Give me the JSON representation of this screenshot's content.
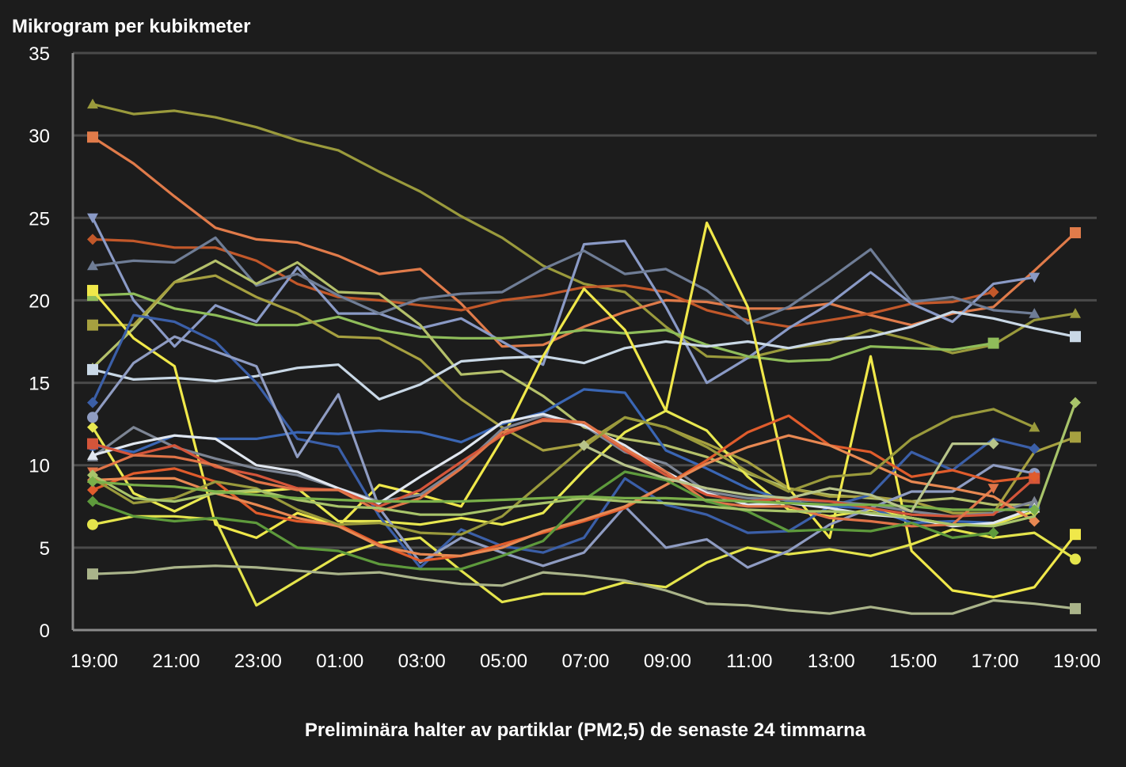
{
  "chart_data": {
    "type": "line",
    "ylabel": "Mikrogram per kubikmeter",
    "caption": "Preliminära halter av partiklar (PM2,5) de senaste 24 timmarna",
    "ylim": [
      0,
      35
    ],
    "yticks": [
      "0",
      "5",
      "10",
      "15",
      "20",
      "25",
      "30",
      "35"
    ],
    "xtick_labels": [
      "19:00",
      "21:00",
      "23:00",
      "01:00",
      "03:00",
      "05:00",
      "07:00",
      "09:00",
      "11:00",
      "13:00",
      "15:00",
      "17:00",
      "19:00"
    ],
    "grid": true,
    "legend": "none",
    "series": [
      {
        "color": "#9a9a3c",
        "marker": "triangle",
        "values": [
          31.9,
          31.3,
          31.5,
          31.1,
          30.5,
          29.7,
          29.1,
          27.8,
          26.6,
          25.1,
          23.8,
          22.1,
          21.0,
          20.5,
          18.4,
          16.6,
          16.5,
          17.1,
          17.4,
          18.2,
          17.6,
          16.8,
          17.3,
          18.8,
          19.2
        ]
      },
      {
        "color": "#e07b4a",
        "marker": "square",
        "values": [
          29.9,
          28.3,
          26.3,
          24.4,
          23.7,
          23.5,
          22.7,
          21.6,
          21.9,
          19.8,
          17.2,
          17.3,
          18.4,
          19.3,
          20.0,
          19.9,
          19.5,
          19.5,
          19.8,
          19.1,
          18.5,
          19.2,
          19.6,
          21.8,
          24.1
        ]
      },
      {
        "color": "#c2582a",
        "marker": "diamond",
        "values": [
          23.7,
          23.6,
          23.2,
          23.2,
          22.4,
          21.0,
          20.2,
          20.0,
          19.7,
          19.4,
          20.0,
          20.3,
          20.8,
          20.9,
          20.5,
          19.4,
          18.8,
          18.4,
          18.8,
          19.2,
          19.8,
          19.9,
          20.5,
          null,
          null
        ]
      },
      {
        "color": "#8a9ac6",
        "marker": "triangle-down",
        "values": [
          25.0,
          20.0,
          17.2,
          19.7,
          18.7,
          22.0,
          19.2,
          19.2,
          18.3,
          18.9,
          17.5,
          16.1,
          23.4,
          23.6,
          19.6,
          15.0,
          16.5,
          18.3,
          19.8,
          21.7,
          19.8,
          18.7,
          21.0,
          21.4,
          null
        ]
      },
      {
        "color": "#6f7d96",
        "marker": "triangle",
        "values": [
          22.1,
          22.4,
          22.3,
          23.8,
          20.9,
          21.6,
          20.3,
          19.2,
          20.1,
          20.4,
          20.5,
          21.9,
          23.0,
          21.6,
          21.9,
          20.6,
          18.6,
          19.6,
          21.3,
          23.1,
          19.9,
          20.2,
          19.4,
          19.2,
          null
        ]
      },
      {
        "color": "#8fbd5a",
        "marker": "square",
        "values": [
          20.3,
          20.4,
          19.5,
          19.1,
          18.5,
          18.5,
          19.0,
          18.2,
          17.8,
          17.7,
          17.7,
          17.9,
          18.2,
          18.0,
          18.2,
          17.3,
          16.6,
          16.3,
          16.4,
          17.2,
          17.1,
          17.0,
          17.4,
          null,
          null
        ]
      },
      {
        "color": "#b4c06a",
        "marker": "triangle",
        "values": [
          15.9,
          18.3,
          21.1,
          22.4,
          21.0,
          22.3,
          20.5,
          20.4,
          18.5,
          15.5,
          15.7,
          14.2,
          12.3,
          11.6,
          11.2,
          10.5,
          9.5,
          8.6,
          8.2,
          8.0,
          7.8,
          8.0,
          7.6,
          7.6,
          null
        ]
      },
      {
        "color": "#a6a040",
        "marker": "square",
        "values": [
          18.5,
          18.5,
          21.1,
          21.5,
          20.2,
          19.2,
          17.8,
          17.7,
          16.4,
          14.0,
          12.3,
          10.9,
          11.3,
          12.9,
          12.3,
          11.3,
          10.2,
          8.6,
          8.1,
          8.1,
          7.8,
          7.1,
          7.1,
          10.8,
          11.7
        ]
      },
      {
        "color": "#c9d8e6",
        "marker": "square",
        "values": [
          15.8,
          15.2,
          15.3,
          15.1,
          15.4,
          15.9,
          16.1,
          14.0,
          14.9,
          16.3,
          16.5,
          16.6,
          16.2,
          17.1,
          17.5,
          17.2,
          17.5,
          17.1,
          17.6,
          17.8,
          18.4,
          19.3,
          18.9,
          18.3,
          17.8
        ]
      },
      {
        "color": "#f0e84a",
        "marker": "square",
        "values": [
          20.6,
          17.7,
          16.0,
          6.4,
          5.6,
          7.1,
          6.3,
          8.8,
          8.2,
          7.5,
          11.6,
          16.6,
          20.7,
          18.2,
          13.3,
          24.7,
          19.6,
          8.6,
          5.6,
          16.6,
          4.8,
          2.4,
          2.0,
          2.6,
          5.8
        ]
      },
      {
        "color": "#e4e44c",
        "marker": "circle",
        "values": [
          6.4,
          6.9,
          6.9,
          6.7,
          1.5,
          3.0,
          4.5,
          5.3,
          5.6,
          3.6,
          1.7,
          2.2,
          2.2,
          2.9,
          2.6,
          4.1,
          5.0,
          4.6,
          4.9,
          4.5,
          5.2,
          6.1,
          5.6,
          5.9,
          4.3
        ]
      },
      {
        "color": "#e8e850",
        "marker": "diamond",
        "values": [
          12.3,
          8.3,
          7.2,
          8.4,
          8.4,
          8.6,
          6.6,
          6.6,
          6.4,
          6.8,
          6.4,
          7.1,
          9.7,
          12.0,
          13.3,
          12.1,
          9.3,
          7.3,
          6.9,
          7.3,
          6.8,
          6.4,
          6.4,
          7.2,
          null
        ]
      },
      {
        "color": "#3b5fa8",
        "marker": "diamond",
        "values": [
          13.8,
          19.1,
          18.7,
          17.5,
          15.0,
          11.6,
          11.1,
          6.9,
          3.8,
          6.1,
          5.1,
          4.7,
          5.6,
          9.2,
          7.6,
          7.0,
          5.9,
          6.0,
          7.5,
          8.2,
          10.8,
          9.7,
          11.6,
          11.0,
          null
        ]
      },
      {
        "color": "#3a66b4",
        "marker": "circle",
        "values": [
          11.2,
          10.8,
          11.8,
          11.6,
          11.6,
          12.0,
          11.9,
          12.1,
          12.0,
          11.4,
          12.5,
          13.2,
          14.6,
          14.4,
          10.9,
          9.8,
          8.6,
          7.8,
          7.5,
          7.4,
          6.5,
          6.6,
          6.5,
          7.4,
          null
        ]
      },
      {
        "color": "#8f9cc2",
        "marker": "circle",
        "values": [
          12.9,
          16.2,
          17.8,
          16.9,
          16.0,
          10.5,
          14.3,
          7.4,
          4.1,
          5.6,
          4.7,
          3.9,
          4.7,
          7.5,
          5.0,
          5.5,
          3.8,
          4.8,
          6.4,
          7.4,
          8.4,
          8.4,
          10.0,
          9.5,
          null
        ]
      },
      {
        "color": "#7d8594",
        "marker": "triangle",
        "values": [
          10.5,
          12.3,
          11.1,
          10.4,
          9.8,
          9.4,
          8.6,
          7.8,
          8.2,
          9.9,
          12.2,
          13.0,
          12.4,
          10.8,
          10.1,
          8.4,
          8.0,
          7.9,
          7.8,
          7.6,
          7.2,
          6.9,
          7.1,
          7.8,
          null
        ]
      },
      {
        "color": "#e0e6ef",
        "marker": "triangle",
        "values": [
          10.6,
          11.3,
          11.8,
          11.6,
          10.0,
          9.6,
          8.6,
          7.7,
          9.3,
          10.8,
          12.6,
          13.1,
          12.4,
          11.2,
          9.6,
          8.3,
          7.6,
          7.7,
          7.4,
          7.0,
          6.8,
          6.3,
          6.5,
          7.4,
          null
        ]
      },
      {
        "color": "#d4553a",
        "marker": "square",
        "values": [
          11.3,
          10.6,
          11.2,
          9.9,
          9.4,
          8.6,
          8.5,
          7.5,
          8.5,
          10.2,
          11.8,
          12.8,
          12.6,
          10.9,
          9.4,
          8.2,
          7.8,
          8.0,
          7.8,
          7.4,
          7.0,
          6.9,
          7.0,
          9.2,
          null
        ]
      },
      {
        "color": "#e07448",
        "marker": "triangle-down",
        "values": [
          9.6,
          10.6,
          10.5,
          10.0,
          9.0,
          8.5,
          8.5,
          7.2,
          8.0,
          9.8,
          12.0,
          12.7,
          12.6,
          11.0,
          9.6,
          7.8,
          7.5,
          7.5,
          6.8,
          6.6,
          6.3,
          6.4,
          8.6,
          null,
          null
        ]
      },
      {
        "color": "#e05c2c",
        "marker": "diamond",
        "values": [
          8.5,
          9.5,
          9.8,
          9.0,
          7.1,
          6.6,
          6.4,
          5.2,
          4.2,
          4.5,
          5.2,
          5.9,
          6.6,
          7.4,
          8.8,
          10.3,
          12.0,
          13.0,
          11.2,
          10.8,
          9.3,
          9.7,
          9.0,
          9.3,
          null
        ]
      },
      {
        "color": "#e88852",
        "marker": "diamond",
        "values": [
          9.1,
          9.2,
          9.2,
          8.3,
          7.6,
          6.8,
          6.3,
          5.1,
          4.6,
          4.5,
          5.0,
          6.0,
          6.7,
          7.5,
          8.8,
          10.1,
          11.1,
          11.8,
          11.2,
          10.1,
          9.0,
          8.6,
          8.1,
          6.6,
          null
        ]
      },
      {
        "color": "#9a9a3c",
        "marker": "triangle",
        "values": [
          9.2,
          7.7,
          8.0,
          9.0,
          8.6,
          7.3,
          6.4,
          6.5,
          5.9,
          5.8,
          6.9,
          9.0,
          11.1,
          12.9,
          12.3,
          11.1,
          9.6,
          8.4,
          9.3,
          9.5,
          11.6,
          12.9,
          13.4,
          12.3,
          null
        ]
      },
      {
        "color": "#5e9a3c",
        "marker": "diamond",
        "values": [
          7.8,
          6.9,
          6.6,
          6.8,
          6.5,
          5.0,
          4.8,
          4.0,
          3.7,
          3.7,
          4.5,
          5.4,
          7.9,
          9.6,
          9.1,
          7.8,
          7.2,
          6.0,
          6.1,
          6.0,
          6.5,
          5.6,
          5.9,
          null,
          null
        ]
      },
      {
        "color": "#a8c46a",
        "marker": "diamond",
        "values": [
          9.4,
          8.0,
          7.8,
          8.3,
          8.5,
          7.9,
          7.5,
          7.4,
          7.0,
          7.0,
          7.4,
          7.7,
          8.0,
          7.8,
          7.7,
          7.5,
          7.3,
          7.2,
          7.2,
          7.1,
          6.8,
          6.4,
          6.3,
          6.9,
          13.8
        ]
      },
      {
        "color": "#7ab04a",
        "marker": "diamond",
        "values": [
          9.0,
          8.8,
          8.7,
          8.4,
          8.2,
          8.0,
          7.9,
          7.8,
          7.8,
          7.8,
          7.9,
          8.0,
          8.1,
          8.0,
          8.0,
          7.9,
          7.8,
          7.7,
          7.6,
          7.6,
          7.5,
          7.3,
          7.3,
          7.3,
          null
        ]
      },
      {
        "color": "#aab48a",
        "marker": "square",
        "values": [
          3.4,
          3.5,
          3.8,
          3.9,
          3.8,
          3.6,
          3.4,
          3.5,
          3.1,
          2.8,
          2.7,
          3.5,
          3.3,
          3.0,
          2.4,
          1.6,
          1.5,
          1.2,
          1.0,
          1.4,
          1.0,
          1.0,
          1.8,
          1.6,
          1.3
        ]
      },
      {
        "color": "#b8c48a",
        "marker": "diamond",
        "values": [
          null,
          null,
          null,
          null,
          null,
          null,
          null,
          null,
          null,
          null,
          null,
          null,
          11.2,
          10.0,
          9.2,
          8.6,
          8.2,
          8.0,
          8.6,
          8.2,
          7.2,
          11.3,
          11.3,
          null,
          null
        ]
      }
    ]
  }
}
